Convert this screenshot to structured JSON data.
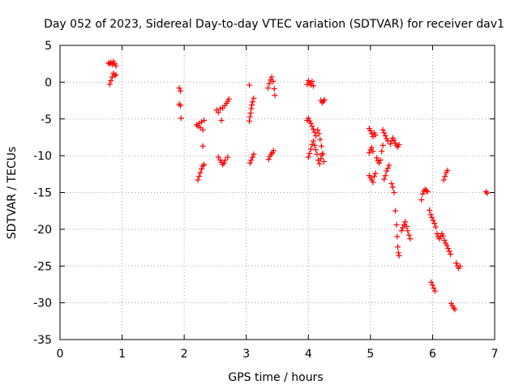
{
  "chart_data": {
    "type": "scatter",
    "title": "Day 052 of 2023, Sidereal Day-to-day VTEC variation (SDTVAR) for receiver dav1",
    "xlabel": "GPS time / hours",
    "ylabel": "SDTVAR / TECUs",
    "xlim": [
      0,
      7
    ],
    "ylim": [
      -35,
      5
    ],
    "xticks": [
      0,
      1,
      2,
      3,
      4,
      5,
      6,
      7
    ],
    "yticks": [
      5,
      0,
      -5,
      -10,
      -15,
      -20,
      -25,
      -30,
      -35
    ],
    "xtick_labels": [
      "0",
      "1",
      "2",
      "3",
      "4",
      "5",
      "6",
      "7"
    ],
    "ytick_labels": [
      "5",
      "0",
      "-5",
      "-10",
      "-15",
      "-20",
      "-25",
      "-30",
      "-35"
    ],
    "grid": true,
    "marker": "plus",
    "color": "#ff0000",
    "series": [
      {
        "name": "dav1",
        "points": [
          [
            0.78,
            2.6
          ],
          [
            0.8,
            2.5
          ],
          [
            0.82,
            2.7
          ],
          [
            0.84,
            2.4
          ],
          [
            0.86,
            2.8
          ],
          [
            0.88,
            2.5
          ],
          [
            0.9,
            2.2
          ],
          [
            0.8,
            -0.3
          ],
          [
            0.82,
            0.2
          ],
          [
            0.84,
            0.7
          ],
          [
            0.86,
            1.2
          ],
          [
            0.88,
            0.9
          ],
          [
            0.9,
            1.0
          ],
          [
            1.92,
            -0.8
          ],
          [
            1.94,
            -1.2
          ],
          [
            1.92,
            -3.0
          ],
          [
            1.94,
            -3.2
          ],
          [
            1.95,
            -4.9
          ],
          [
            2.2,
            -5.8
          ],
          [
            2.22,
            -6.0
          ],
          [
            2.24,
            -5.6
          ],
          [
            2.26,
            -6.2
          ],
          [
            2.28,
            -5.4
          ],
          [
            2.3,
            -6.5
          ],
          [
            2.32,
            -5.2
          ],
          [
            2.3,
            -8.7
          ],
          [
            2.22,
            -13.3
          ],
          [
            2.24,
            -12.8
          ],
          [
            2.26,
            -12.3
          ],
          [
            2.28,
            -11.8
          ],
          [
            2.3,
            -11.4
          ],
          [
            2.32,
            -11.2
          ],
          [
            2.52,
            -3.8
          ],
          [
            2.55,
            -4.1
          ],
          [
            2.58,
            -3.6
          ],
          [
            2.6,
            -5.2
          ],
          [
            2.62,
            -3.5
          ],
          [
            2.65,
            -3.2
          ],
          [
            2.68,
            -2.9
          ],
          [
            2.7,
            -2.6
          ],
          [
            2.72,
            -2.3
          ],
          [
            2.55,
            -10.2
          ],
          [
            2.58,
            -10.6
          ],
          [
            2.6,
            -10.9
          ],
          [
            2.62,
            -11.2
          ],
          [
            2.64,
            -11.0
          ],
          [
            2.66,
            -10.6
          ],
          [
            2.7,
            -10.2
          ],
          [
            3.05,
            -0.4
          ],
          [
            3.05,
            -5.3
          ],
          [
            3.06,
            -4.7
          ],
          [
            3.07,
            -4.2
          ],
          [
            3.08,
            -3.6
          ],
          [
            3.09,
            -3.1
          ],
          [
            3.1,
            -2.7
          ],
          [
            3.12,
            -2.2
          ],
          [
            3.06,
            -11.0
          ],
          [
            3.08,
            -10.6
          ],
          [
            3.1,
            -10.2
          ],
          [
            3.12,
            -9.8
          ],
          [
            3.35,
            -0.8
          ],
          [
            3.37,
            -0.2
          ],
          [
            3.39,
            0.3
          ],
          [
            3.41,
            0.7
          ],
          [
            3.43,
            0.1
          ],
          [
            3.45,
            -0.9
          ],
          [
            3.46,
            -1.8
          ],
          [
            3.36,
            -10.5
          ],
          [
            3.38,
            -10.1
          ],
          [
            3.4,
            -9.8
          ],
          [
            3.42,
            -9.6
          ],
          [
            3.44,
            -9.3
          ],
          [
            3.98,
            -0.3
          ],
          [
            4.0,
            0.2
          ],
          [
            4.02,
            -0.1
          ],
          [
            4.04,
            -0.4
          ],
          [
            4.06,
            0.1
          ],
          [
            4.08,
            -0.5
          ],
          [
            3.98,
            -5.2
          ],
          [
            4.0,
            -4.9
          ],
          [
            4.02,
            -5.3
          ],
          [
            4.04,
            -5.6
          ],
          [
            4.06,
            -6.0
          ],
          [
            4.08,
            -6.4
          ],
          [
            4.1,
            -6.8
          ],
          [
            4.12,
            -7.3
          ],
          [
            4.0,
            -10.2
          ],
          [
            4.02,
            -9.7
          ],
          [
            4.04,
            -9.1
          ],
          [
            4.06,
            -8.5
          ],
          [
            4.08,
            -8.0
          ],
          [
            4.1,
            -8.6
          ],
          [
            4.12,
            -9.2
          ],
          [
            4.14,
            -9.8
          ],
          [
            4.16,
            -10.6
          ],
          [
            4.18,
            -11.1
          ],
          [
            4.2,
            -10.4
          ],
          [
            4.22,
            -9.9
          ],
          [
            4.15,
            -6.5
          ],
          [
            4.17,
            -7.0
          ],
          [
            4.19,
            -7.8
          ],
          [
            4.21,
            -8.7
          ],
          [
            4.23,
            -9.7
          ],
          [
            4.25,
            -10.8
          ],
          [
            4.2,
            -2.5
          ],
          [
            4.22,
            -2.8
          ],
          [
            4.24,
            -2.6
          ],
          [
            4.26,
            -2.4
          ],
          [
            4.98,
            -6.3
          ],
          [
            5.0,
            -6.6
          ],
          [
            5.02,
            -7.0
          ],
          [
            5.04,
            -7.4
          ],
          [
            5.06,
            -6.9
          ],
          [
            5.08,
            -7.2
          ],
          [
            4.98,
            -9.6
          ],
          [
            5.0,
            -9.2
          ],
          [
            5.02,
            -8.9
          ],
          [
            5.04,
            -9.4
          ],
          [
            4.98,
            -12.7
          ],
          [
            5.0,
            -13.0
          ],
          [
            5.02,
            -13.3
          ],
          [
            5.04,
            -13.6
          ],
          [
            5.06,
            -12.8
          ],
          [
            5.08,
            -12.4
          ],
          [
            5.1,
            -10.3
          ],
          [
            5.12,
            -10.7
          ],
          [
            5.14,
            -11.0
          ],
          [
            5.16,
            -10.6
          ],
          [
            5.18,
            -9.4
          ],
          [
            5.2,
            -8.6
          ],
          [
            5.2,
            -6.5
          ],
          [
            5.22,
            -6.9
          ],
          [
            5.24,
            -7.3
          ],
          [
            5.26,
            -7.7
          ],
          [
            5.28,
            -8.0
          ],
          [
            5.22,
            -13.2
          ],
          [
            5.24,
            -12.7
          ],
          [
            5.26,
            -12.1
          ],
          [
            5.28,
            -11.7
          ],
          [
            5.3,
            -11.3
          ],
          [
            5.32,
            -8.4
          ],
          [
            5.34,
            -8.0
          ],
          [
            5.36,
            -7.6
          ],
          [
            5.38,
            -7.9
          ],
          [
            5.4,
            -8.3
          ],
          [
            5.42,
            -8.6
          ],
          [
            5.44,
            -8.8
          ],
          [
            5.46,
            -8.5
          ],
          [
            5.34,
            -13.8
          ],
          [
            5.36,
            -14.3
          ],
          [
            5.38,
            -15.0
          ],
          [
            5.4,
            -17.5
          ],
          [
            5.42,
            -19.4
          ],
          [
            5.43,
            -21.0
          ],
          [
            5.44,
            -22.4
          ],
          [
            5.45,
            -23.2
          ],
          [
            5.46,
            -23.6
          ],
          [
            5.5,
            -20.2
          ],
          [
            5.52,
            -19.8
          ],
          [
            5.54,
            -19.4
          ],
          [
            5.56,
            -19.0
          ],
          [
            5.58,
            -19.6
          ],
          [
            5.6,
            -20.2
          ],
          [
            5.62,
            -20.8
          ],
          [
            5.64,
            -21.3
          ],
          [
            5.82,
            -16.0
          ],
          [
            5.84,
            -15.2
          ],
          [
            5.86,
            -14.8
          ],
          [
            5.88,
            -14.6
          ],
          [
            5.9,
            -14.7
          ],
          [
            5.92,
            -14.9
          ],
          [
            5.95,
            -17.4
          ],
          [
            5.97,
            -18.0
          ],
          [
            5.99,
            -18.4
          ],
          [
            6.01,
            -18.8
          ],
          [
            6.03,
            -19.2
          ],
          [
            6.05,
            -19.7
          ],
          [
            6.07,
            -20.6
          ],
          [
            6.09,
            -21.0
          ],
          [
            6.11,
            -21.3
          ],
          [
            6.13,
            -21.0
          ],
          [
            6.15,
            -20.6
          ],
          [
            6.17,
            -20.9
          ],
          [
            6.19,
            -21.5
          ],
          [
            6.21,
            -21.9
          ],
          [
            6.23,
            -22.2
          ],
          [
            6.25,
            -22.6
          ],
          [
            6.27,
            -23.0
          ],
          [
            6.29,
            -23.4
          ],
          [
            6.18,
            -13.3
          ],
          [
            6.2,
            -12.8
          ],
          [
            6.22,
            -12.3
          ],
          [
            6.24,
            -12.0
          ],
          [
            5.98,
            -27.2
          ],
          [
            6.0,
            -27.6
          ],
          [
            6.02,
            -28.0
          ],
          [
            6.04,
            -28.4
          ],
          [
            6.3,
            -30.1
          ],
          [
            6.32,
            -30.4
          ],
          [
            6.34,
            -30.7
          ],
          [
            6.36,
            -30.9
          ],
          [
            6.38,
            -24.6
          ],
          [
            6.4,
            -25.0
          ],
          [
            6.42,
            -25.3
          ],
          [
            6.44,
            -25.0
          ],
          [
            6.86,
            -14.9
          ],
          [
            6.88,
            -15.1
          ]
        ]
      }
    ]
  }
}
